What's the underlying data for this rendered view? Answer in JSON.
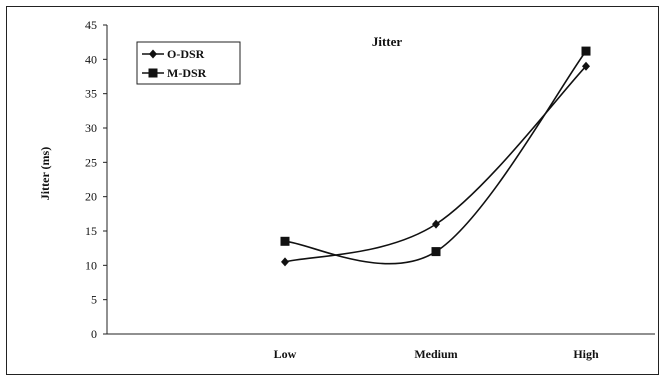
{
  "chart_data": {
    "type": "line",
    "title": "Jitter",
    "xlabel": "",
    "ylabel": "Jitter (ms)",
    "categories": [
      "Low",
      "Medium",
      "High"
    ],
    "ylim": [
      0,
      45
    ],
    "yticks": [
      0,
      5,
      10,
      15,
      20,
      25,
      30,
      35,
      40,
      45
    ],
    "grid": false,
    "legend_placement": "top-left",
    "smooth": true,
    "series": [
      {
        "name": "O-DSR",
        "marker": "diamond",
        "color": "#111111",
        "values": [
          10.5,
          16,
          39
        ]
      },
      {
        "name": "M-DSR",
        "marker": "square",
        "color": "#111111",
        "values": [
          13.5,
          12,
          41.2
        ]
      }
    ]
  }
}
